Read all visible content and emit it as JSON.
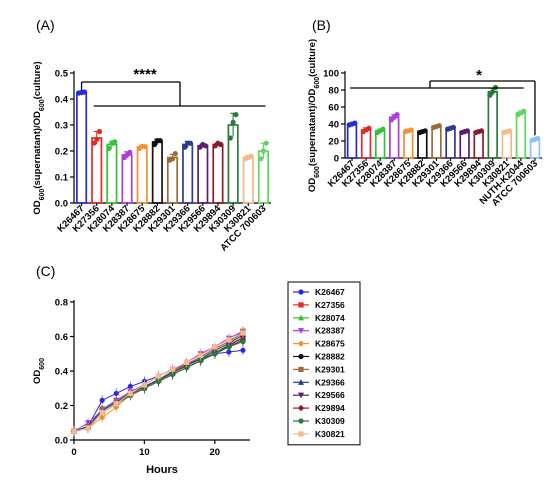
{
  "chart_data": [
    {
      "type": "bar",
      "panel": "(A)",
      "ylabel": {
        "prefix": "OD",
        "sub1": "600",
        "mid": "(supernatant)/OD",
        "sub2": "600",
        "suffix": "(culture)"
      },
      "ylim": [
        0,
        0.5
      ],
      "yticks": [
        "0.0",
        "0.1",
        "0.2",
        "0.3",
        "0.4",
        "0.5"
      ],
      "significance": "****",
      "categories": [
        "K26467",
        "K27356",
        "K28074",
        "K28387",
        "K28675",
        "K28882",
        "K29301",
        "K29366",
        "K29566",
        "K29894",
        "K30309",
        "K30821",
        "ATCC 700603"
      ],
      "values": [
        0.425,
        0.25,
        0.225,
        0.185,
        0.215,
        0.235,
        0.175,
        0.225,
        0.22,
        0.225,
        0.3,
        0.175,
        0.2
      ],
      "errors": [
        0.004,
        0.025,
        0.012,
        0.012,
        0.006,
        0.01,
        0.012,
        0.012,
        0.006,
        0.006,
        0.045,
        0.008,
        0.03
      ],
      "points": [
        [
          0.423,
          0.425,
          0.427
        ],
        [
          0.23,
          0.245,
          0.275
        ],
        [
          0.21,
          0.23,
          0.235
        ],
        [
          0.175,
          0.185,
          0.195
        ],
        [
          0.21,
          0.218,
          0.217
        ],
        [
          0.225,
          0.24,
          0.24
        ],
        [
          0.165,
          0.17,
          0.19
        ],
        [
          0.215,
          0.23,
          0.23
        ],
        [
          0.215,
          0.225,
          0.22
        ],
        [
          0.22,
          0.23,
          0.225
        ],
        [
          0.25,
          0.31,
          0.34
        ],
        [
          0.17,
          0.175,
          0.18
        ],
        [
          0.17,
          0.2,
          0.23
        ]
      ],
      "colors": [
        "#2929e3",
        "#e32929",
        "#34c234",
        "#a93ee0",
        "#f5922b",
        "#111111",
        "#9c6b39",
        "#2e3a8c",
        "#5a1e6e",
        "#8a1c2c",
        "#2a7a3c",
        "#f5b98a",
        "#5fd65f"
      ]
    },
    {
      "type": "bar",
      "panel": "(B)",
      "ylabel": {
        "prefix": "OD",
        "sub1": "600",
        "mid": "(supernatant)/OD",
        "sub2": "600",
        "suffix": "(culture)"
      },
      "ylim": [
        0,
        100
      ],
      "yticks": [
        "0",
        "20",
        "40",
        "60",
        "80",
        "100"
      ],
      "significance": "*",
      "categories": [
        "K26467",
        "K27356",
        "K28074",
        "K28387",
        "K28675",
        "K28882",
        "K29301",
        "K29366",
        "K29566",
        "K29894",
        "K30309",
        "K30821",
        "NUTH-K2044",
        "ATCC 700603"
      ],
      "values": [
        40,
        33,
        32,
        48,
        32,
        31,
        37,
        35,
        31,
        31,
        78,
        31,
        53,
        22
      ],
      "errors": [
        1,
        2.5,
        2,
        3,
        1.5,
        1,
        1,
        1,
        1,
        1,
        4,
        1,
        2,
        1
      ],
      "points": [
        [
          39,
          40,
          41
        ],
        [
          31,
          33,
          35
        ],
        [
          30,
          32,
          34
        ],
        [
          45,
          48,
          51
        ],
        [
          31,
          32,
          33
        ],
        [
          30,
          31,
          32
        ],
        [
          36,
          37,
          38
        ],
        [
          34,
          35,
          36
        ],
        [
          30,
          31,
          32
        ],
        [
          30,
          31,
          32
        ],
        [
          74,
          78,
          83
        ],
        [
          30,
          31,
          32
        ],
        [
          51,
          53,
          55
        ],
        [
          21,
          22,
          23
        ]
      ],
      "colors": [
        "#2929e3",
        "#e32929",
        "#34c234",
        "#a93ee0",
        "#f5922b",
        "#111111",
        "#9c6b39",
        "#2e3a8c",
        "#5a1e6e",
        "#8a1c2c",
        "#2a7a3c",
        "#f5b98a",
        "#5fd65f",
        "#8ec3f5"
      ]
    },
    {
      "type": "line",
      "panel": "(C)",
      "xlabel": "Hours",
      "ylabel": {
        "prefix": "OD",
        "sub1": "600"
      },
      "xlim": [
        0,
        25
      ],
      "ylim": [
        0,
        0.8
      ],
      "xticks": [
        "0",
        "10",
        "20"
      ],
      "yticks": [
        "0.0",
        "0.2",
        "0.4",
        "0.6",
        "0.8"
      ],
      "x": [
        0,
        2,
        4,
        6,
        8,
        10,
        12,
        14,
        16,
        18,
        20,
        22,
        24
      ],
      "series": [
        {
          "name": "K26467",
          "color": "#2929e3",
          "marker": "circle",
          "values": [
            0.05,
            0.08,
            0.23,
            0.27,
            0.31,
            0.34,
            0.37,
            0.41,
            0.44,
            0.47,
            0.5,
            0.51,
            0.52
          ]
        },
        {
          "name": "K27356",
          "color": "#e32929",
          "marker": "square",
          "values": [
            0.05,
            0.07,
            0.18,
            0.22,
            0.27,
            0.31,
            0.35,
            0.39,
            0.44,
            0.48,
            0.53,
            0.57,
            0.62
          ]
        },
        {
          "name": "K28074",
          "color": "#34c234",
          "marker": "triangle-up",
          "values": [
            0.05,
            0.08,
            0.18,
            0.23,
            0.27,
            0.31,
            0.35,
            0.39,
            0.43,
            0.47,
            0.51,
            0.55,
            0.6
          ]
        },
        {
          "name": "K28387",
          "color": "#a93ee0",
          "marker": "triangle-down",
          "values": [
            0.05,
            0.1,
            0.17,
            0.23,
            0.28,
            0.32,
            0.37,
            0.41,
            0.45,
            0.5,
            0.54,
            0.59,
            0.63
          ]
        },
        {
          "name": "K28675",
          "color": "#f5922b",
          "marker": "diamond",
          "values": [
            0.05,
            0.07,
            0.13,
            0.19,
            0.26,
            0.31,
            0.35,
            0.38,
            0.42,
            0.46,
            0.5,
            0.54,
            0.6
          ]
        },
        {
          "name": "K28882",
          "color": "#111111",
          "marker": "circle",
          "values": [
            0.05,
            0.07,
            0.16,
            0.21,
            0.26,
            0.3,
            0.34,
            0.38,
            0.42,
            0.46,
            0.5,
            0.54,
            0.58
          ]
        },
        {
          "name": "K29301",
          "color": "#9c6b39",
          "marker": "square",
          "values": [
            0.05,
            0.07,
            0.16,
            0.21,
            0.26,
            0.3,
            0.35,
            0.4,
            0.44,
            0.48,
            0.53,
            0.57,
            0.63
          ]
        },
        {
          "name": "K29366",
          "color": "#2e3a8c",
          "marker": "triangle-up",
          "values": [
            0.05,
            0.08,
            0.17,
            0.22,
            0.27,
            0.31,
            0.35,
            0.39,
            0.43,
            0.47,
            0.52,
            0.56,
            0.61
          ]
        },
        {
          "name": "K29566",
          "color": "#5a1e6e",
          "marker": "triangle-down",
          "values": [
            0.05,
            0.07,
            0.16,
            0.21,
            0.26,
            0.3,
            0.34,
            0.38,
            0.42,
            0.46,
            0.5,
            0.55,
            0.59
          ]
        },
        {
          "name": "K29894",
          "color": "#8a1c2c",
          "marker": "diamond",
          "values": [
            0.05,
            0.07,
            0.16,
            0.21,
            0.26,
            0.3,
            0.34,
            0.38,
            0.42,
            0.46,
            0.5,
            0.54,
            0.58
          ]
        },
        {
          "name": "K30309",
          "color": "#2a7a3c",
          "marker": "circle",
          "values": [
            0.05,
            0.07,
            0.16,
            0.21,
            0.26,
            0.3,
            0.34,
            0.38,
            0.42,
            0.46,
            0.5,
            0.54,
            0.57
          ]
        },
        {
          "name": "K30821",
          "color": "#f5b98a",
          "marker": "square",
          "values": [
            0.05,
            0.07,
            0.16,
            0.21,
            0.27,
            0.32,
            0.37,
            0.41,
            0.45,
            0.49,
            0.54,
            0.58,
            0.62
          ]
        }
      ],
      "legend": "right"
    }
  ]
}
